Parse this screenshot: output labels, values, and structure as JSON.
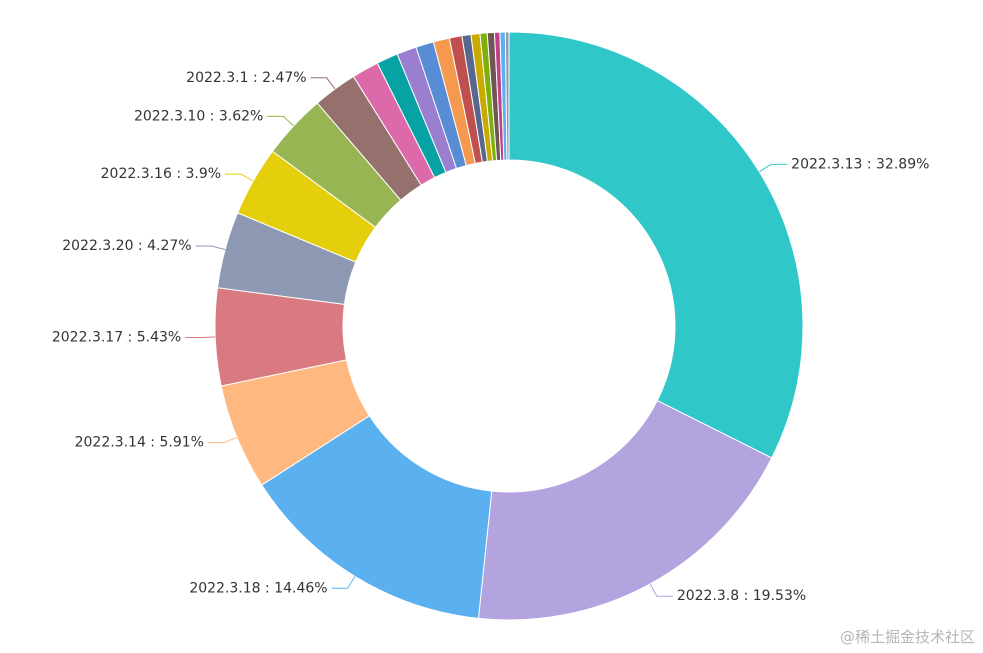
{
  "chart_data": {
    "type": "pie",
    "variant": "donut",
    "slices": [
      {
        "name": "2022.3.13",
        "value": 32.89,
        "label": "2022.3.13 : 32.89%",
        "color": "#30c7c9",
        "labeled": true
      },
      {
        "name": "2022.3.8",
        "value": 19.53,
        "label": "2022.3.8 : 19.53%",
        "color": "#b3a3de",
        "labeled": true
      },
      {
        "name": "2022.3.18",
        "value": 14.46,
        "label": "2022.3.18 : 14.46%",
        "color": "#5bb1ef",
        "labeled": true
      },
      {
        "name": "2022.3.14",
        "value": 5.91,
        "label": "2022.3.14 : 5.91%",
        "color": "#ffb980",
        "labeled": true
      },
      {
        "name": "2022.3.17",
        "value": 5.43,
        "label": "2022.3.17 : 5.43%",
        "color": "#d87a80",
        "labeled": true
      },
      {
        "name": "2022.3.20",
        "value": 4.27,
        "label": "2022.3.20 : 4.27%",
        "color": "#8d98b3",
        "labeled": true
      },
      {
        "name": "2022.3.16",
        "value": 3.9,
        "label": "2022.3.16 : 3.9%",
        "color": "#e5cf0d",
        "labeled": true
      },
      {
        "name": "2022.3.10",
        "value": 3.62,
        "label": "2022.3.10 : 3.62%",
        "color": "#97b552",
        "labeled": true
      },
      {
        "name": "2022.3.1",
        "value": 2.47,
        "label": "2022.3.1 : 2.47%",
        "color": "#95706d",
        "labeled": true
      },
      {
        "name": "",
        "value": 1.5,
        "label": "",
        "color": "#dc69aa",
        "labeled": false
      },
      {
        "name": "",
        "value": 1.2,
        "label": "",
        "color": "#07a2a4",
        "labeled": false
      },
      {
        "name": "",
        "value": 1.1,
        "label": "",
        "color": "#9a7fd1",
        "labeled": false
      },
      {
        "name": "",
        "value": 1.0,
        "label": "",
        "color": "#588dd5",
        "labeled": false
      },
      {
        "name": "",
        "value": 0.9,
        "label": "",
        "color": "#f5994e",
        "labeled": false
      },
      {
        "name": "",
        "value": 0.7,
        "label": "",
        "color": "#c05050",
        "labeled": false
      },
      {
        "name": "",
        "value": 0.5,
        "label": "",
        "color": "#59678c",
        "labeled": false
      },
      {
        "name": "",
        "value": 0.5,
        "label": "",
        "color": "#c9ab00",
        "labeled": false
      },
      {
        "name": "",
        "value": 0.4,
        "label": "",
        "color": "#7eb00a",
        "labeled": false
      },
      {
        "name": "",
        "value": 0.4,
        "label": "",
        "color": "#6f5553",
        "labeled": false
      },
      {
        "name": "",
        "value": 0.3,
        "label": "",
        "color": "#c14089",
        "labeled": false
      },
      {
        "name": "",
        "value": 0.3,
        "label": "",
        "color": "#5ab1ef",
        "labeled": false
      },
      {
        "name": "",
        "value": 0.2,
        "label": "",
        "color": "#8d98b3",
        "labeled": false
      }
    ]
  },
  "watermark": "@稀土掘金技术社区"
}
